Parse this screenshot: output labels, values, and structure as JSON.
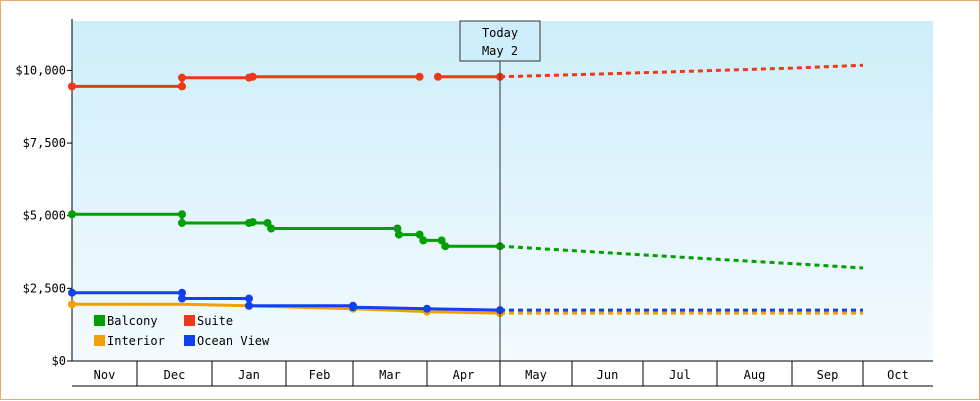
{
  "chart_data": {
    "type": "line",
    "y_ticks": [
      {
        "value": 0,
        "label": "$0"
      },
      {
        "value": 2500,
        "label": "$2,500"
      },
      {
        "value": 5000,
        "label": "$5,000"
      },
      {
        "value": 7500,
        "label": "$7,500"
      },
      {
        "value": 10000,
        "label": "$10,000"
      }
    ],
    "ylim": [
      0,
      11700
    ],
    "months": [
      "Nov",
      "Dec",
      "Jan",
      "Feb",
      "Mar",
      "Apr",
      "May",
      "Jun",
      "Jul",
      "Aug",
      "Sep",
      "Oct"
    ],
    "today": {
      "line1": "Today",
      "line2": "May 2",
      "x": 6.0
    },
    "legend_placement": "bottom-left",
    "grid": false,
    "series": [
      {
        "name": "Balcony",
        "color": "#00a000",
        "actual": [
          [
            0.0,
            5050
          ],
          [
            1.6,
            5050
          ],
          [
            1.6,
            4750
          ],
          [
            2.5,
            4750
          ],
          [
            2.55,
            4780
          ],
          [
            2.62,
            4750
          ],
          [
            2.75,
            4750
          ],
          [
            2.8,
            4560
          ],
          [
            4.6,
            4560
          ],
          [
            4.62,
            4350
          ],
          [
            4.9,
            4350
          ],
          [
            4.95,
            4150
          ],
          [
            5.2,
            4150
          ],
          [
            5.25,
            3950
          ],
          [
            6.0,
            3950
          ]
        ],
        "markers": [
          [
            0.0,
            5050
          ],
          [
            1.6,
            5050
          ],
          [
            1.6,
            4750
          ],
          [
            2.5,
            4750
          ],
          [
            2.55,
            4780
          ],
          [
            2.75,
            4750
          ],
          [
            2.8,
            4560
          ],
          [
            4.6,
            4560
          ],
          [
            4.62,
            4350
          ],
          [
            4.9,
            4350
          ],
          [
            4.95,
            4150
          ],
          [
            5.2,
            4150
          ],
          [
            5.25,
            3950
          ],
          [
            6.0,
            3950
          ]
        ],
        "forecast": [
          [
            6.0,
            3950
          ],
          [
            7.0,
            3800
          ],
          [
            8.0,
            3650
          ],
          [
            9.0,
            3500
          ],
          [
            10.0,
            3350
          ],
          [
            11.0,
            3200
          ]
        ]
      },
      {
        "name": "Suite",
        "color": "#f03818",
        "actual": [
          [
            0.0,
            9450
          ],
          [
            1.6,
            9450
          ],
          [
            1.6,
            9750
          ],
          [
            2.5,
            9750
          ],
          [
            2.55,
            9780
          ],
          [
            4.9,
            9780
          ]
        ],
        "actual2": [
          [
            5.15,
            9780
          ],
          [
            6.0,
            9780
          ]
        ],
        "markers": [
          [
            0.0,
            9450
          ],
          [
            1.6,
            9450
          ],
          [
            1.6,
            9750
          ],
          [
            2.5,
            9750
          ],
          [
            2.55,
            9780
          ],
          [
            4.9,
            9780
          ],
          [
            5.15,
            9780
          ],
          [
            6.0,
            9780
          ]
        ],
        "forecast": [
          [
            6.0,
            9780
          ],
          [
            7.0,
            9850
          ],
          [
            8.0,
            9920
          ],
          [
            9.0,
            10000
          ],
          [
            10.0,
            10080
          ],
          [
            11.0,
            10180
          ]
        ]
      },
      {
        "name": "Interior",
        "color": "#f0a000",
        "actual": [
          [
            0.0,
            1950
          ],
          [
            1.6,
            1950
          ],
          [
            2.5,
            1900
          ],
          [
            4.0,
            1800
          ],
          [
            5.0,
            1700
          ],
          [
            6.0,
            1650
          ]
        ],
        "markers": [
          [
            0.0,
            1950
          ],
          [
            2.5,
            1900
          ],
          [
            4.0,
            1800
          ],
          [
            5.0,
            1700
          ],
          [
            6.0,
            1650
          ]
        ],
        "forecast": [
          [
            6.0,
            1650
          ],
          [
            11.0,
            1650
          ]
        ]
      },
      {
        "name": "Ocean View",
        "color": "#1040f0",
        "actual": [
          [
            0.0,
            2350
          ],
          [
            1.6,
            2350
          ],
          [
            1.6,
            2150
          ],
          [
            2.5,
            2150
          ],
          [
            2.5,
            1900
          ],
          [
            4.0,
            1900
          ],
          [
            4.0,
            1850
          ],
          [
            5.0,
            1800
          ],
          [
            6.0,
            1750
          ]
        ],
        "markers": [
          [
            0.0,
            2350
          ],
          [
            1.6,
            2350
          ],
          [
            1.6,
            2150
          ],
          [
            2.5,
            2150
          ],
          [
            2.5,
            1900
          ],
          [
            4.0,
            1900
          ],
          [
            4.0,
            1850
          ],
          [
            5.0,
            1800
          ],
          [
            6.0,
            1750
          ]
        ],
        "forecast": [
          [
            6.0,
            1750
          ],
          [
            11.0,
            1750
          ]
        ]
      }
    ]
  }
}
